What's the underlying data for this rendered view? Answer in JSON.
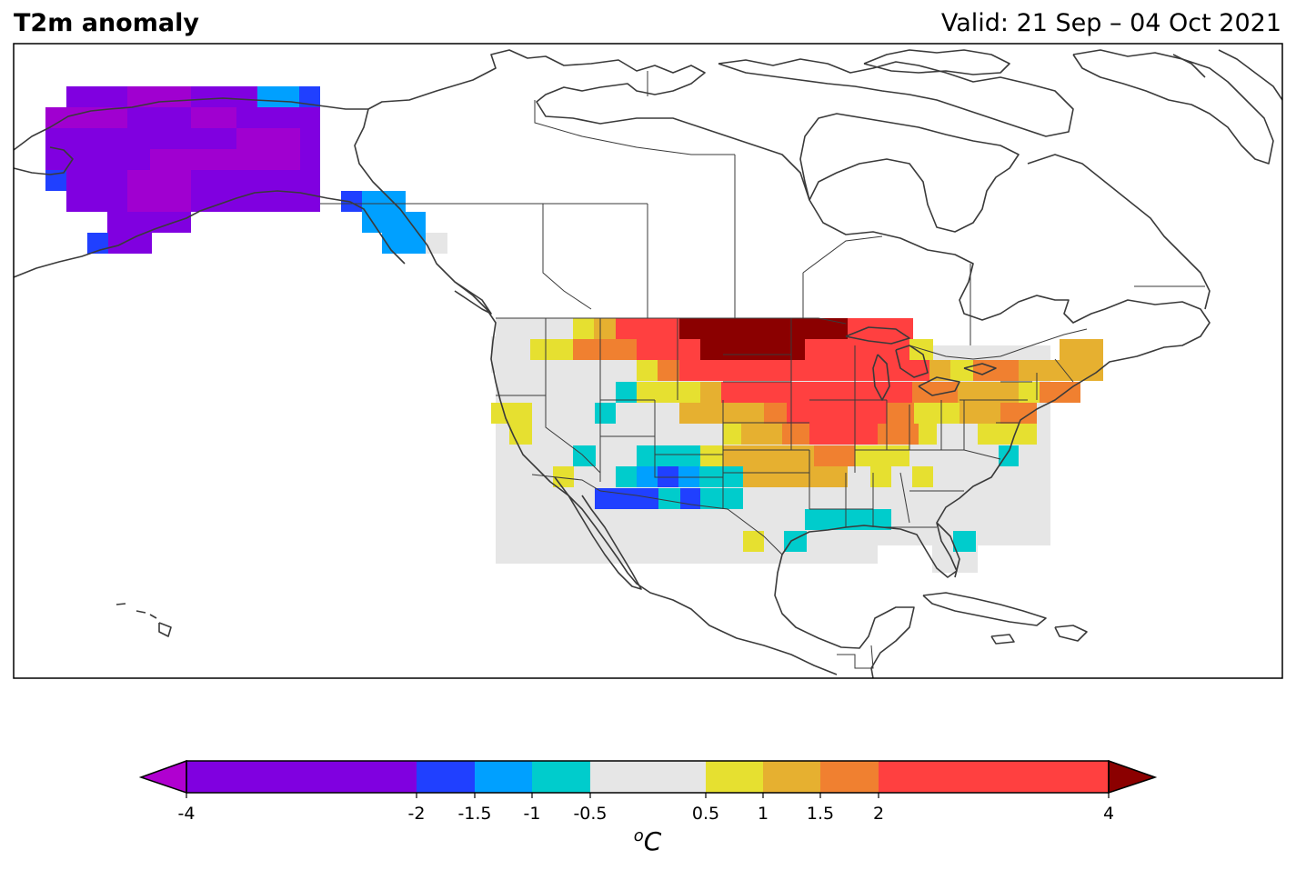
{
  "title": "T2m anomaly",
  "valid": "Valid: 21 Sep – 04 Oct 2021",
  "colorbar": {
    "unit_sup": "o",
    "unit": "C",
    "tick_labels": [
      "-4",
      "-2",
      "-1.5",
      "-1",
      "-0.5",
      "0.5",
      "1",
      "1.5",
      "2",
      "4"
    ],
    "bins": [
      {
        "from": -4,
        "to": -2,
        "color": "#8000e0"
      },
      {
        "from": -2,
        "to": -1.5,
        "color": "#2040ff"
      },
      {
        "from": -1.5,
        "to": -1,
        "color": "#00a0ff"
      },
      {
        "from": -1,
        "to": -0.5,
        "color": "#00cccc"
      },
      {
        "from": -0.5,
        "to": 0.5,
        "color": "#e6e6e6"
      },
      {
        "from": 0.5,
        "to": 1,
        "color": "#e6e030"
      },
      {
        "from": 1,
        "to": 1.5,
        "color": "#e6b030"
      },
      {
        "from": 1.5,
        "to": 2,
        "color": "#f08030"
      },
      {
        "from": 2,
        "to": 4,
        "color": "#ff4040"
      }
    ],
    "under_color": "#b000d0",
    "over_color": "#8b0000"
  },
  "legend_colors": {
    "purple": "#8000e0",
    "violet": "#a000d0",
    "blue": "#2040ff",
    "sky": "#00a0ff",
    "cyan": "#00cccc",
    "grey": "#e6e6e6",
    "yellow": "#e6e030",
    "gold": "#e6b030",
    "orange": "#f08030",
    "red": "#ff4040",
    "darkred": "#8b0000"
  }
}
